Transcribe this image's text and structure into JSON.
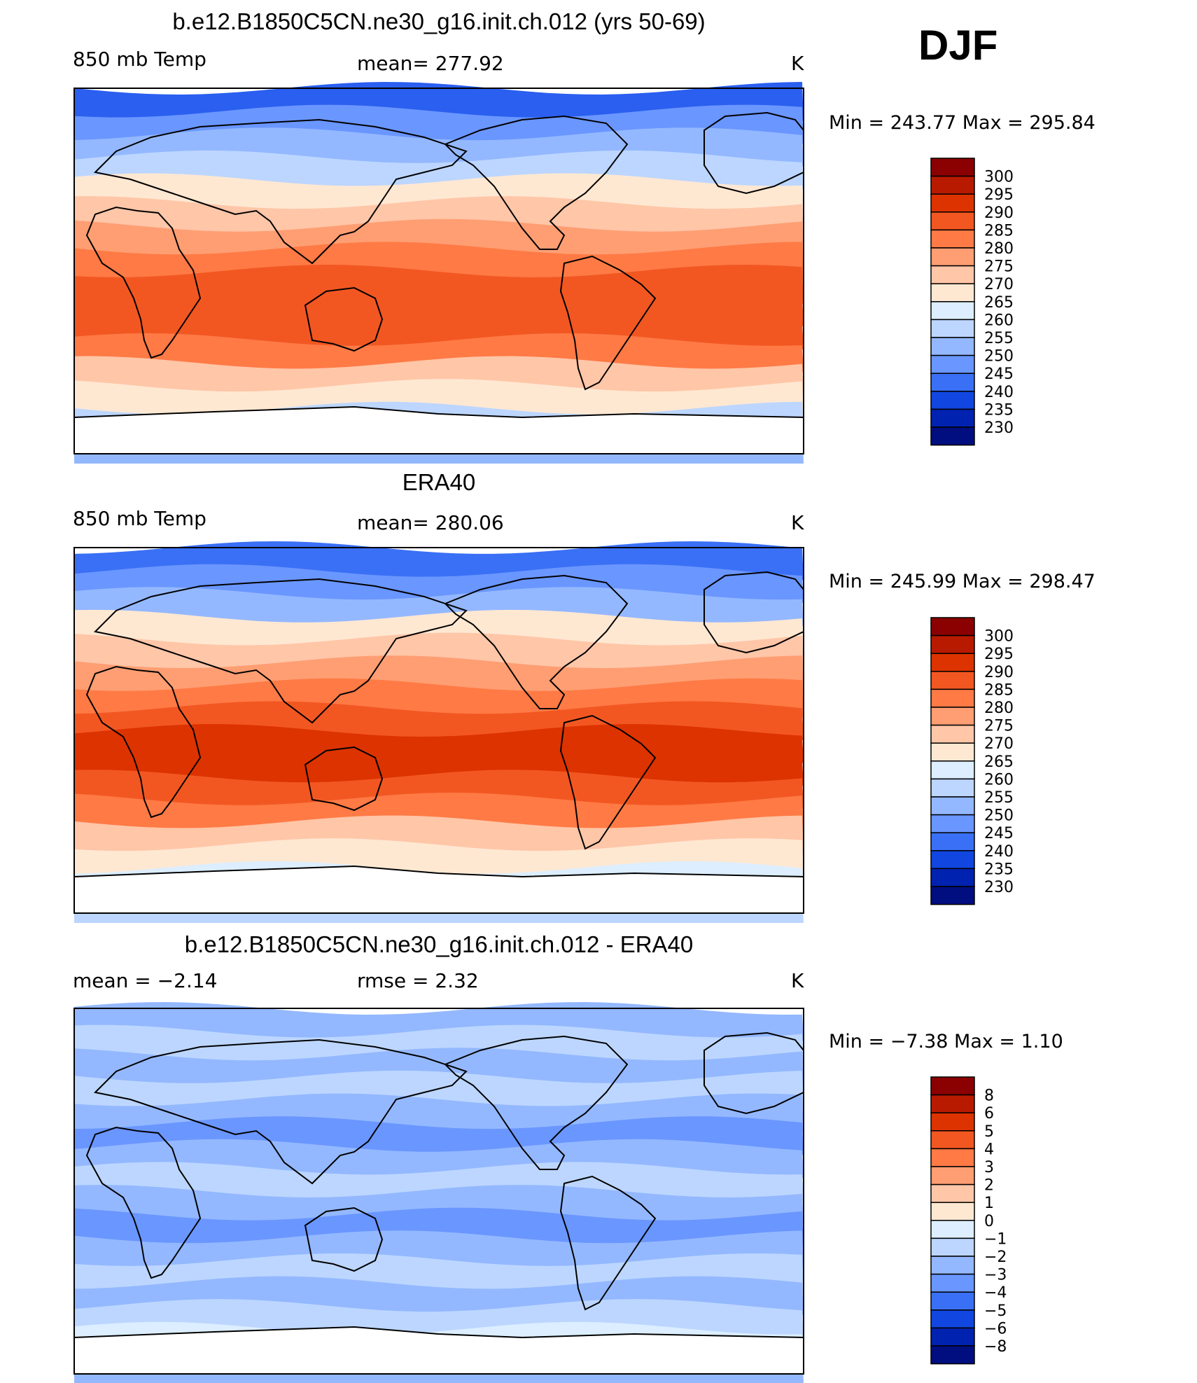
{
  "season": "DJF",
  "panels": [
    {
      "title": "b.e12.B1850C5CN.ne30_g16.init.ch.012 (yrs 50-69)",
      "left_label": "850 mb Temp",
      "center_label": "mean=  277.92",
      "right_label": "K",
      "minmax": "Min  =  243.77  Max  =  295.84"
    },
    {
      "title": "ERA40",
      "left_label": "850 mb Temp",
      "center_label": "mean=  280.06",
      "right_label": "K",
      "minmax": "Min  =  245.99  Max  =  298.47"
    },
    {
      "title": "b.e12.B1850C5CN.ne30_g16.init.ch.012 - ERA40",
      "left_label": "mean  =    −2.14",
      "center_label": "rmse  =     2.32",
      "right_label": "K",
      "minmax": "Min  =    −7.38  Max  =     1.10"
    }
  ],
  "chart_data": [
    {
      "type": "heatmap",
      "title": "b.e12.B1850C5CN.ne30_g16.init.ch.012 (yrs 50-69)",
      "variable": "850 mb Temp",
      "units": "K",
      "mean": 277.92,
      "min": 243.77,
      "max": 295.84,
      "colorbar": {
        "labels": [
          "300",
          "295",
          "290",
          "285",
          "280",
          "275",
          "270",
          "265",
          "260",
          "255",
          "250",
          "245",
          "240",
          "235",
          "230"
        ],
        "colors": [
          "#8b0000",
          "#b81a00",
          "#dd3300",
          "#f25722",
          "#ff7a45",
          "#ff9e73",
          "#ffc6a8",
          "#ffe8d2",
          "#dceeff",
          "#bcd6ff",
          "#94b8ff",
          "#6a96ff",
          "#3a70f5",
          "#1146e0",
          "#0022b0",
          "#000e80"
        ]
      },
      "band_colors": [
        "#2a5ff0",
        "#6a96ff",
        "#94b8ff",
        "#bcd6ff",
        "#ffe8d2",
        "#ffc6a8",
        "#ff9e73",
        "#ff7a45",
        "#f25722",
        "#f25722",
        "#f25722",
        "#ff7a45",
        "#ffc6a8",
        "#ffe8d2",
        "#bcd6ff",
        "#94b8ff"
      ]
    },
    {
      "type": "heatmap",
      "title": "ERA40",
      "variable": "850 mb Temp",
      "units": "K",
      "mean": 280.06,
      "min": 245.99,
      "max": 298.47,
      "colorbar": {
        "labels": [
          "300",
          "295",
          "290",
          "285",
          "280",
          "275",
          "270",
          "265",
          "260",
          "255",
          "250",
          "245",
          "240",
          "235",
          "230"
        ],
        "colors": [
          "#8b0000",
          "#b81a00",
          "#dd3300",
          "#f25722",
          "#ff7a45",
          "#ff9e73",
          "#ffc6a8",
          "#ffe8d2",
          "#dceeff",
          "#bcd6ff",
          "#94b8ff",
          "#6a96ff",
          "#3a70f5",
          "#1146e0",
          "#0022b0",
          "#000e80"
        ]
      },
      "band_colors": [
        "#3a70f5",
        "#6a96ff",
        "#94b8ff",
        "#ffe8d2",
        "#ffc6a8",
        "#ff9e73",
        "#ff7a45",
        "#f25722",
        "#dd3300",
        "#dd3300",
        "#f25722",
        "#ff7a45",
        "#ffc6a8",
        "#ffe8d2",
        "#dceeff",
        "#bcd6ff"
      ]
    },
    {
      "type": "heatmap",
      "title": "b.e12.B1850C5CN.ne30_g16.init.ch.012 - ERA40",
      "units": "K",
      "mean": -2.14,
      "rmse": 2.32,
      "min": -7.38,
      "max": 1.1,
      "colorbar": {
        "labels": [
          "8",
          "6",
          "5",
          "4",
          "3",
          "2",
          "1",
          "0",
          "−1",
          "−2",
          "−3",
          "−4",
          "−5",
          "−6",
          "−8"
        ],
        "colors": [
          "#8b0000",
          "#b81a00",
          "#dd3300",
          "#f25722",
          "#ff7a45",
          "#ff9e73",
          "#ffc6a8",
          "#ffe8d2",
          "#dceeff",
          "#bcd6ff",
          "#94b8ff",
          "#6a96ff",
          "#3a70f5",
          "#1146e0",
          "#0022b0",
          "#000e80"
        ]
      },
      "band_colors": [
        "#94b8ff",
        "#bcd6ff",
        "#94b8ff",
        "#bcd6ff",
        "#94b8ff",
        "#6a96ff",
        "#94b8ff",
        "#bcd6ff",
        "#94b8ff",
        "#6a96ff",
        "#94b8ff",
        "#bcd6ff",
        "#94b8ff",
        "#bcd6ff",
        "#dceeff",
        "#94b8ff"
      ]
    }
  ]
}
